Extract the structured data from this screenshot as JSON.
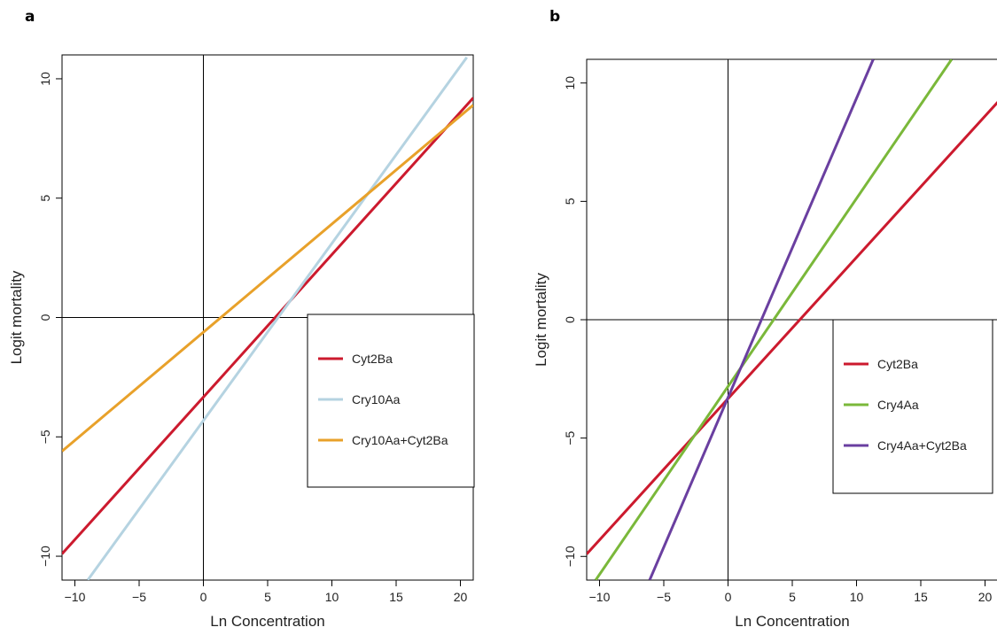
{
  "chart_data": [
    {
      "panel": "a",
      "type": "line",
      "title": "",
      "xlabel": "Ln Concentration",
      "ylabel": "Logit mortality",
      "xlim": [
        -11,
        21
      ],
      "ylim": [
        -11,
        11
      ],
      "xticks": [
        -10,
        -5,
        0,
        5,
        10,
        15,
        20
      ],
      "yticks": [
        -10,
        -5,
        0,
        5,
        10
      ],
      "reference_lines": {
        "x": 0,
        "y": 0
      },
      "grid": false,
      "legend_position": "right, below zero line",
      "series": [
        {
          "name": "Cyt2Ba",
          "color": "#cc1a2e",
          "x": [
            -11,
            21
          ],
          "y": [
            -9.9,
            9.2
          ]
        },
        {
          "name": "Cry10Aa",
          "color": "#b5d3e1",
          "x": [
            -9,
            20.5
          ],
          "y": [
            -11,
            10.9
          ]
        },
        {
          "name": "Cry10Aa+Cyt2Ba",
          "color": "#e8a12a",
          "x": [
            -11,
            21
          ],
          "y": [
            -5.6,
            8.9
          ]
        }
      ]
    },
    {
      "panel": "b",
      "type": "line",
      "title": "",
      "xlabel": "Ln Concentration",
      "ylabel": "Logit mortality",
      "xlim": [
        -11,
        21
      ],
      "ylim": [
        -11,
        11
      ],
      "xticks": [
        -10,
        -5,
        0,
        5,
        10,
        15,
        20
      ],
      "yticks": [
        -10,
        -5,
        0,
        5,
        10
      ],
      "reference_lines": {
        "x": 0,
        "y": 0
      },
      "grid": false,
      "legend_position": "right, below zero line",
      "series": [
        {
          "name": "Cyt2Ba",
          "color": "#cc1a2e",
          "x": [
            -11,
            21
          ],
          "y": [
            -9.9,
            9.2
          ]
        },
        {
          "name": "Cry4Aa",
          "color": "#7ab83a",
          "x": [
            -10.3,
            17.4
          ],
          "y": [
            -11,
            11
          ]
        },
        {
          "name": "Cry4Aa+Cyt2Ba",
          "color": "#6a3fa0",
          "x": [
            -6.1,
            11.3
          ],
          "y": [
            -11,
            11
          ]
        }
      ]
    }
  ]
}
